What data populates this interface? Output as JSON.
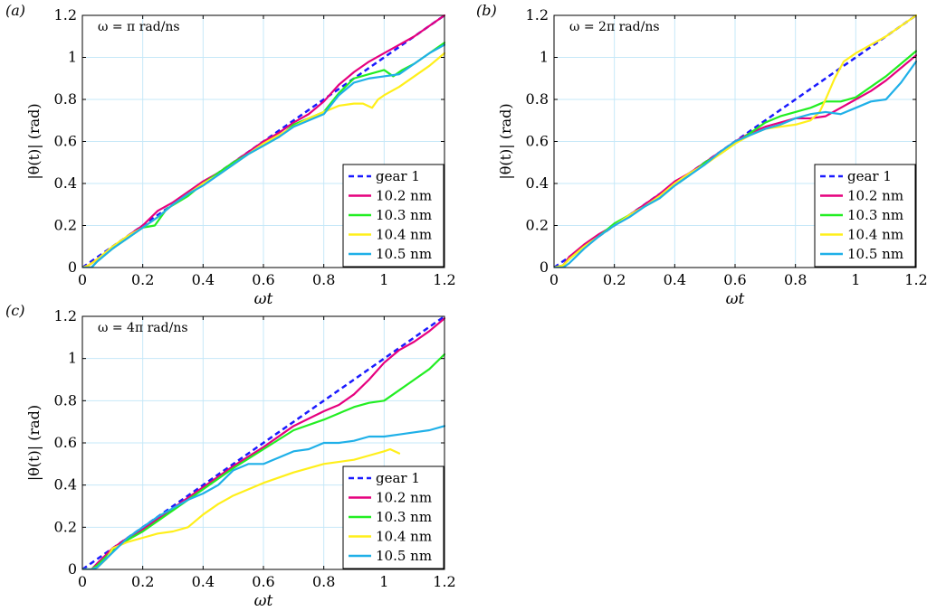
{
  "figure": {
    "panel_labels": [
      "(a)",
      "(b)",
      "(c)"
    ]
  },
  "chart_data": [
    {
      "type": "line",
      "panel": "(a)",
      "annotation": "ω = π rad/ns",
      "xlabel": "ωt",
      "ylabel": "|θ(t)| (rad)",
      "xlim": [
        0,
        1.2
      ],
      "ylim": [
        0,
        1.2
      ],
      "xticks": [
        0,
        0.2,
        0.4,
        0.6,
        0.8,
        1,
        1.2
      ],
      "yticks": [
        0,
        0.2,
        0.4,
        0.6,
        0.8,
        1,
        1.2
      ],
      "tick_labels": [
        "0",
        "0.2",
        "0.4",
        "0.6",
        "0.8",
        "1",
        "1.2"
      ],
      "grid": true,
      "legend_position": "bottom-right",
      "series": [
        {
          "name": "gear 1",
          "color": "#1a1aff",
          "dashed": true,
          "x": [
            0,
            1.2
          ],
          "y": [
            0,
            1.2
          ]
        },
        {
          "name": "10.2 nm",
          "color": "#e6007e",
          "dashed": false,
          "x": [
            0,
            0.02,
            0.05,
            0.1,
            0.15,
            0.2,
            0.25,
            0.3,
            0.35,
            0.4,
            0.45,
            0.5,
            0.55,
            0.6,
            0.65,
            0.7,
            0.75,
            0.8,
            0.85,
            0.9,
            0.95,
            1.0,
            1.05,
            1.1,
            1.15,
            1.2
          ],
          "y": [
            0,
            0.01,
            0.04,
            0.09,
            0.15,
            0.2,
            0.27,
            0.31,
            0.36,
            0.41,
            0.45,
            0.5,
            0.55,
            0.6,
            0.64,
            0.69,
            0.73,
            0.79,
            0.87,
            0.93,
            0.98,
            1.02,
            1.06,
            1.1,
            1.15,
            1.2
          ]
        },
        {
          "name": "10.3 nm",
          "color": "#22ee22",
          "dashed": false,
          "x": [
            0,
            0.03,
            0.05,
            0.1,
            0.15,
            0.2,
            0.24,
            0.28,
            0.35,
            0.4,
            0.45,
            0.5,
            0.55,
            0.6,
            0.65,
            0.7,
            0.75,
            0.8,
            0.85,
            0.9,
            0.95,
            1.0,
            1.03,
            1.06,
            1.1,
            1.15,
            1.2
          ],
          "y": [
            0,
            0.0,
            0.03,
            0.09,
            0.14,
            0.19,
            0.2,
            0.28,
            0.34,
            0.4,
            0.45,
            0.5,
            0.54,
            0.58,
            0.62,
            0.68,
            0.71,
            0.74,
            0.83,
            0.9,
            0.92,
            0.94,
            0.91,
            0.94,
            0.97,
            1.02,
            1.07
          ]
        },
        {
          "name": "10.4 nm",
          "color": "#ffef1a",
          "dashed": false,
          "x": [
            0,
            0.02,
            0.05,
            0.1,
            0.15,
            0.2,
            0.25,
            0.3,
            0.35,
            0.4,
            0.45,
            0.5,
            0.55,
            0.6,
            0.65,
            0.7,
            0.75,
            0.8,
            0.85,
            0.9,
            0.93,
            0.96,
            0.98,
            1.0,
            1.05,
            1.1,
            1.15,
            1.2
          ],
          "y": [
            0,
            0.01,
            0.04,
            0.1,
            0.15,
            0.19,
            0.24,
            0.3,
            0.35,
            0.4,
            0.44,
            0.49,
            0.54,
            0.59,
            0.63,
            0.67,
            0.71,
            0.74,
            0.77,
            0.78,
            0.78,
            0.76,
            0.8,
            0.82,
            0.86,
            0.91,
            0.96,
            1.02
          ]
        },
        {
          "name": "10.5 nm",
          "color": "#1fb0e8",
          "dashed": false,
          "x": [
            0,
            0.03,
            0.05,
            0.1,
            0.15,
            0.2,
            0.25,
            0.3,
            0.35,
            0.4,
            0.45,
            0.5,
            0.55,
            0.6,
            0.65,
            0.7,
            0.75,
            0.8,
            0.85,
            0.9,
            0.95,
            1.0,
            1.05,
            1.1,
            1.15,
            1.2
          ],
          "y": [
            0,
            0.0,
            0.03,
            0.09,
            0.14,
            0.19,
            0.24,
            0.3,
            0.35,
            0.39,
            0.44,
            0.49,
            0.54,
            0.58,
            0.62,
            0.67,
            0.7,
            0.73,
            0.82,
            0.88,
            0.9,
            0.91,
            0.92,
            0.97,
            1.02,
            1.06
          ]
        }
      ]
    },
    {
      "type": "line",
      "panel": "(b)",
      "annotation": "ω = 2π rad/ns",
      "xlabel": "ωt",
      "ylabel": "|θ(t)| (rad)",
      "xlim": [
        0,
        1.2
      ],
      "ylim": [
        0,
        1.2
      ],
      "xticks": [
        0,
        0.2,
        0.4,
        0.6,
        0.8,
        1,
        1.2
      ],
      "yticks": [
        0,
        0.2,
        0.4,
        0.6,
        0.8,
        1,
        1.2
      ],
      "tick_labels": [
        "0",
        "0.2",
        "0.4",
        "0.6",
        "0.8",
        "1",
        "1.2"
      ],
      "grid": true,
      "legend_position": "bottom-right",
      "series": [
        {
          "name": "gear 1",
          "color": "#1a1aff",
          "dashed": true,
          "x": [
            0,
            1.2
          ],
          "y": [
            0,
            1.2
          ]
        },
        {
          "name": "10.2 nm",
          "color": "#e6007e",
          "dashed": false,
          "x": [
            0,
            0.03,
            0.05,
            0.1,
            0.15,
            0.2,
            0.25,
            0.3,
            0.35,
            0.4,
            0.45,
            0.5,
            0.55,
            0.6,
            0.65,
            0.7,
            0.75,
            0.8,
            0.85,
            0.9,
            0.95,
            1.0,
            1.05,
            1.1,
            1.15,
            1.2
          ],
          "y": [
            0,
            0.01,
            0.05,
            0.11,
            0.16,
            0.2,
            0.25,
            0.3,
            0.35,
            0.41,
            0.45,
            0.5,
            0.55,
            0.6,
            0.64,
            0.67,
            0.69,
            0.71,
            0.71,
            0.72,
            0.76,
            0.8,
            0.84,
            0.89,
            0.95,
            1.01
          ]
        },
        {
          "name": "10.3 nm",
          "color": "#22ee22",
          "dashed": false,
          "x": [
            0,
            0.03,
            0.05,
            0.1,
            0.15,
            0.2,
            0.25,
            0.3,
            0.35,
            0.4,
            0.45,
            0.5,
            0.55,
            0.6,
            0.65,
            0.7,
            0.75,
            0.8,
            0.85,
            0.9,
            0.95,
            1.0,
            1.05,
            1.1,
            1.15,
            1.2
          ],
          "y": [
            0,
            0.01,
            0.04,
            0.1,
            0.15,
            0.21,
            0.25,
            0.29,
            0.33,
            0.39,
            0.44,
            0.5,
            0.54,
            0.59,
            0.64,
            0.69,
            0.72,
            0.74,
            0.76,
            0.79,
            0.79,
            0.81,
            0.86,
            0.91,
            0.97,
            1.03
          ]
        },
        {
          "name": "10.4 nm",
          "color": "#ffef1a",
          "dashed": false,
          "x": [
            0,
            0.03,
            0.05,
            0.1,
            0.15,
            0.2,
            0.25,
            0.3,
            0.35,
            0.4,
            0.45,
            0.5,
            0.55,
            0.6,
            0.65,
            0.7,
            0.75,
            0.8,
            0.85,
            0.88,
            0.9,
            0.93,
            0.96,
            1.0,
            1.05,
            1.1,
            1.15,
            1.2
          ],
          "y": [
            0,
            0.01,
            0.04,
            0.1,
            0.15,
            0.2,
            0.25,
            0.29,
            0.34,
            0.4,
            0.45,
            0.49,
            0.54,
            0.59,
            0.63,
            0.66,
            0.67,
            0.68,
            0.7,
            0.74,
            0.8,
            0.9,
            0.98,
            1.02,
            1.06,
            1.1,
            1.15,
            1.2
          ]
        },
        {
          "name": "10.5 nm",
          "color": "#1fb0e8",
          "dashed": false,
          "x": [
            0,
            0.03,
            0.05,
            0.1,
            0.15,
            0.2,
            0.25,
            0.3,
            0.35,
            0.4,
            0.45,
            0.5,
            0.55,
            0.6,
            0.65,
            0.7,
            0.75,
            0.8,
            0.85,
            0.9,
            0.95,
            1.0,
            1.05,
            1.1,
            1.15,
            1.2
          ],
          "y": [
            0,
            0.0,
            0.02,
            0.09,
            0.15,
            0.2,
            0.24,
            0.29,
            0.33,
            0.39,
            0.44,
            0.49,
            0.55,
            0.6,
            0.63,
            0.66,
            0.68,
            0.71,
            0.73,
            0.74,
            0.73,
            0.76,
            0.79,
            0.8,
            0.88,
            0.98
          ]
        }
      ]
    },
    {
      "type": "line",
      "panel": "(c)",
      "annotation": "ω = 4π rad/ns",
      "xlabel": "ωt",
      "ylabel": "|θ(t)| (rad)",
      "xlim": [
        0,
        1.2
      ],
      "ylim": [
        0,
        1.2
      ],
      "xticks": [
        0,
        0.2,
        0.4,
        0.6,
        0.8,
        1,
        1.2
      ],
      "yticks": [
        0,
        0.2,
        0.4,
        0.6,
        0.8,
        1,
        1.2
      ],
      "tick_labels": [
        "0",
        "0.2",
        "0.4",
        "0.6",
        "0.8",
        "1",
        "1.2"
      ],
      "grid": true,
      "legend_position": "bottom-right",
      "series": [
        {
          "name": "gear 1",
          "color": "#1a1aff",
          "dashed": true,
          "x": [
            0,
            1.2
          ],
          "y": [
            0,
            1.2
          ]
        },
        {
          "name": "10.2 nm",
          "color": "#e6007e",
          "dashed": false,
          "x": [
            0,
            0.03,
            0.05,
            0.1,
            0.15,
            0.2,
            0.3,
            0.4,
            0.5,
            0.6,
            0.7,
            0.8,
            0.85,
            0.9,
            0.95,
            1.0,
            1.05,
            1.1,
            1.15,
            1.2
          ],
          "y": [
            0,
            0.0,
            0.03,
            0.1,
            0.15,
            0.19,
            0.29,
            0.39,
            0.49,
            0.58,
            0.68,
            0.75,
            0.78,
            0.83,
            0.9,
            0.98,
            1.04,
            1.08,
            1.13,
            1.19
          ]
        },
        {
          "name": "10.3 nm",
          "color": "#22ee22",
          "dashed": false,
          "x": [
            0,
            0.03,
            0.05,
            0.1,
            0.15,
            0.2,
            0.3,
            0.4,
            0.5,
            0.6,
            0.7,
            0.8,
            0.85,
            0.9,
            0.95,
            1.0,
            1.05,
            1.1,
            1.15,
            1.2
          ],
          "y": [
            0,
            0.0,
            0.02,
            0.09,
            0.14,
            0.18,
            0.28,
            0.38,
            0.48,
            0.57,
            0.66,
            0.71,
            0.74,
            0.77,
            0.79,
            0.8,
            0.85,
            0.9,
            0.95,
            1.02
          ]
        },
        {
          "name": "10.4 nm",
          "color": "#ffef1a",
          "dashed": false,
          "x": [
            0,
            0.03,
            0.05,
            0.08,
            0.1,
            0.15,
            0.2,
            0.25,
            0.3,
            0.35,
            0.4,
            0.45,
            0.5,
            0.6,
            0.7,
            0.8,
            0.9,
            0.95,
            1.0,
            1.02,
            1.05
          ],
          "y": [
            0,
            0.0,
            0.01,
            0.05,
            0.1,
            0.13,
            0.15,
            0.17,
            0.18,
            0.2,
            0.26,
            0.31,
            0.35,
            0.41,
            0.46,
            0.5,
            0.52,
            0.54,
            0.56,
            0.57,
            0.55
          ]
        },
        {
          "name": "10.5 nm",
          "color": "#1fb0e8",
          "dashed": false,
          "x": [
            0,
            0.03,
            0.05,
            0.1,
            0.15,
            0.2,
            0.25,
            0.3,
            0.35,
            0.4,
            0.45,
            0.5,
            0.55,
            0.6,
            0.65,
            0.7,
            0.75,
            0.8,
            0.85,
            0.9,
            0.95,
            1.0,
            1.05,
            1.1,
            1.15,
            1.2
          ],
          "y": [
            0,
            0.0,
            0.01,
            0.08,
            0.15,
            0.2,
            0.25,
            0.29,
            0.33,
            0.36,
            0.4,
            0.47,
            0.5,
            0.5,
            0.53,
            0.56,
            0.57,
            0.6,
            0.6,
            0.61,
            0.63,
            0.63,
            0.64,
            0.65,
            0.66,
            0.68
          ]
        }
      ]
    }
  ]
}
